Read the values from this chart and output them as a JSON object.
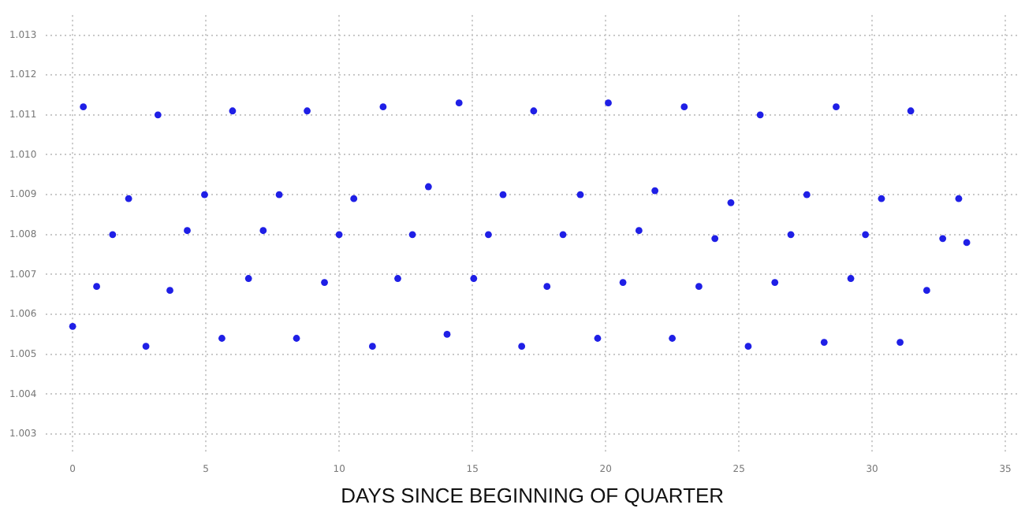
{
  "chart_data": {
    "type": "scatter",
    "xlabel": "DAYS SINCE BEGINNING OF QUARTER",
    "series": [
      {
        "color": "#1f1fe6",
        "x": [
          0,
          0.4,
          0.9,
          1.5,
          2.1,
          2.75,
          3.2,
          3.65,
          4.3,
          4.95,
          5.6,
          6.0,
          6.6,
          7.15,
          7.75,
          8.4,
          8.8,
          9.45,
          10.0,
          10.55,
          11.25,
          11.65,
          12.2,
          12.75,
          13.35,
          14.05,
          14.5,
          15.05,
          15.6,
          16.15,
          16.85,
          17.3,
          17.8,
          18.4,
          19.05,
          19.7,
          20.1,
          20.65,
          21.25,
          21.85,
          22.5,
          22.95,
          23.5,
          24.1,
          24.7,
          25.35,
          25.8,
          26.35,
          26.95,
          27.55,
          28.2,
          28.65,
          29.2,
          29.75,
          30.35,
          31.05,
          31.45,
          32.05,
          32.65,
          33.25,
          33.55
        ],
        "values": [
          1.0057,
          1.0112,
          1.0067,
          1.008,
          1.0089,
          1.0052,
          1.011,
          1.0066,
          1.0081,
          1.009,
          1.0054,
          1.0111,
          1.0069,
          1.0081,
          1.009,
          1.0054,
          1.0111,
          1.0068,
          1.008,
          1.0089,
          1.0052,
          1.0112,
          1.0069,
          1.008,
          1.0092,
          1.0055,
          1.0113,
          1.0069,
          1.008,
          1.009,
          1.0052,
          1.0111,
          1.0067,
          1.008,
          1.009,
          1.0054,
          1.0113,
          1.0068,
          1.0081,
          1.0091,
          1.0054,
          1.0112,
          1.0067,
          1.0079,
          1.0088,
          1.0052,
          1.011,
          1.0068,
          1.008,
          1.009,
          1.0053,
          1.0112,
          1.0069,
          1.008,
          1.0089,
          1.0053,
          1.0111,
          1.0066,
          1.0079,
          1.0089,
          1.0078
        ]
      }
    ],
    "xlim": [
      -1,
      35.5
    ],
    "xticks": [
      0,
      5,
      10,
      15,
      20,
      25,
      30,
      35
    ],
    "ylim": [
      1.0025,
      1.0135
    ],
    "yticks": [
      1.003,
      1.004,
      1.005,
      1.006,
      1.007,
      1.008,
      1.009,
      {
        "value": 1.01,
        "label": "1.010"
      },
      1.011,
      1.012,
      1.013
    ],
    "grid": true,
    "legend": false,
    "marker": "circle"
  }
}
